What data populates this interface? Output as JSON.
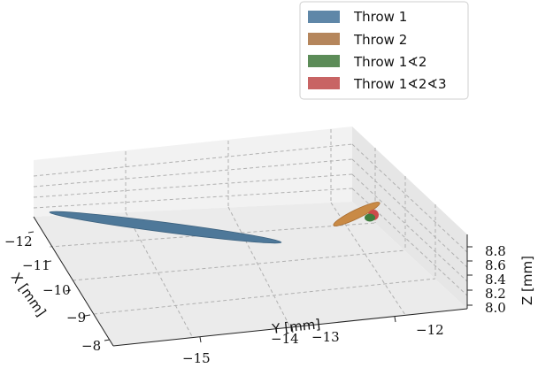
{
  "chart_data": {
    "type": "scatter",
    "projection": "3d",
    "axes": {
      "x": {
        "label": "X [mm]",
        "ticks": [
          "−12",
          "−11",
          "−10",
          "−9",
          "−8"
        ]
      },
      "y": {
        "label": "Y [mm]",
        "ticks": [
          "−15",
          "−14",
          "−13",
          "−12"
        ]
      },
      "z": {
        "label": "Z [mm]",
        "ticks": [
          "8.0",
          "8.2",
          "8.4",
          "8.6",
          "8.8"
        ]
      }
    },
    "grid": true,
    "legend": {
      "placement": "top-right",
      "entries": [
        {
          "label": "Throw 1",
          "color": "#5f87a8"
        },
        {
          "label": "Throw 2",
          "color": "#b5865c"
        },
        {
          "label": "Throw 1∢2",
          "color": "#5c8c58"
        },
        {
          "label": "Throw 1∢2∢3",
          "color": "#c86464"
        }
      ]
    },
    "series": [
      {
        "name": "Throw 1",
        "shape": "ellipsoid",
        "color": "#4e7899"
      },
      {
        "name": "Throw 2",
        "shape": "ellipsoid",
        "color": "#c98a45"
      },
      {
        "name": "Throw 1∢2",
        "shape": "ellipsoid",
        "color": "#3f7d3d"
      },
      {
        "name": "Throw 1∢2∢3",
        "shape": "ellipsoid",
        "color": "#cc4a4a"
      }
    ]
  }
}
